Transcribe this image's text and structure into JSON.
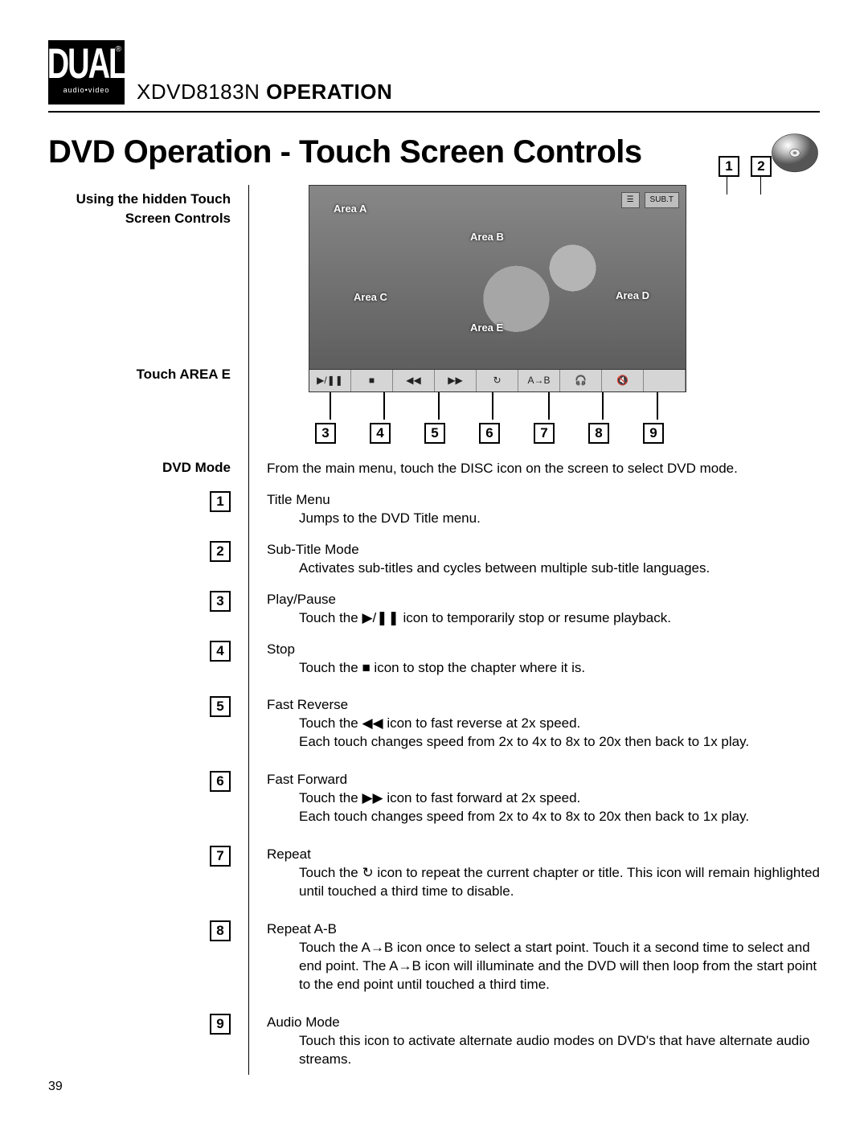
{
  "logo": {
    "main": "DUAL",
    "sub": "audio•video",
    "reg": "®"
  },
  "model": {
    "code": "XDVD8183N",
    "word": "OPERATION"
  },
  "section_title": "DVD Operation - Touch Screen Controls",
  "left_labels": {
    "using": "Using the hidden Touch Screen Controls",
    "touch_area": "Touch AREA E",
    "dvd_mode": "DVD Mode"
  },
  "dvd_mode_text": "From the main menu, touch the DISC icon on the screen to select DVD mode.",
  "areas": {
    "a": "Area A",
    "b": "Area B",
    "c": "Area C",
    "d": "Area D",
    "e": "Area E"
  },
  "osd": {
    "menu": "☰",
    "subt": "SUB.T"
  },
  "player_icons": [
    "▶/❚❚",
    "■",
    "◀◀",
    "▶▶",
    "↻",
    "A→B",
    "🎧",
    "🔇"
  ],
  "callouts_top": [
    "1",
    "2"
  ],
  "callouts_bottom": [
    "3",
    "4",
    "5",
    "6",
    "7",
    "8",
    "9"
  ],
  "items": [
    {
      "num": "1",
      "title": "Title Menu",
      "desc": "Jumps to the DVD Title menu."
    },
    {
      "num": "2",
      "title": "Sub-Title Mode",
      "desc": "Activates sub-titles and cycles between multiple sub-title languages."
    },
    {
      "num": "3",
      "title": "Play/Pause",
      "desc": "Touch the ▶/❚❚ icon to temporarily stop or resume playback."
    },
    {
      "num": "4",
      "title": "Stop",
      "desc": "Touch the ■ icon to stop the chapter where it is."
    },
    {
      "num": "5",
      "title": "Fast Reverse",
      "desc": "Touch the ◀◀ icon to fast reverse at 2x speed.\nEach touch changes speed from 2x to 4x to 8x to 20x then back to 1x play."
    },
    {
      "num": "6",
      "title": "Fast Forward",
      "desc": "Touch the ▶▶ icon to fast forward at 2x speed.\nEach touch changes speed from 2x to 4x to 8x to 20x then back to 1x play."
    },
    {
      "num": "7",
      "title": "Repeat",
      "desc": "Touch the ↻ icon to repeat the current chapter or title. This icon will remain  highlighted until touched a third time to disable."
    },
    {
      "num": "8",
      "title": "Repeat A-B",
      "desc": "Touch the A→B icon once to select a start point. Touch it a second time to select and end point. The A→B icon will illuminate and the DVD will then loop from the start point to the end point until touched a third time."
    },
    {
      "num": "9",
      "title": "Audio Mode",
      "desc": "Touch this icon to activate alternate audio modes on DVD's that have alternate audio streams."
    }
  ],
  "page_number": "39"
}
